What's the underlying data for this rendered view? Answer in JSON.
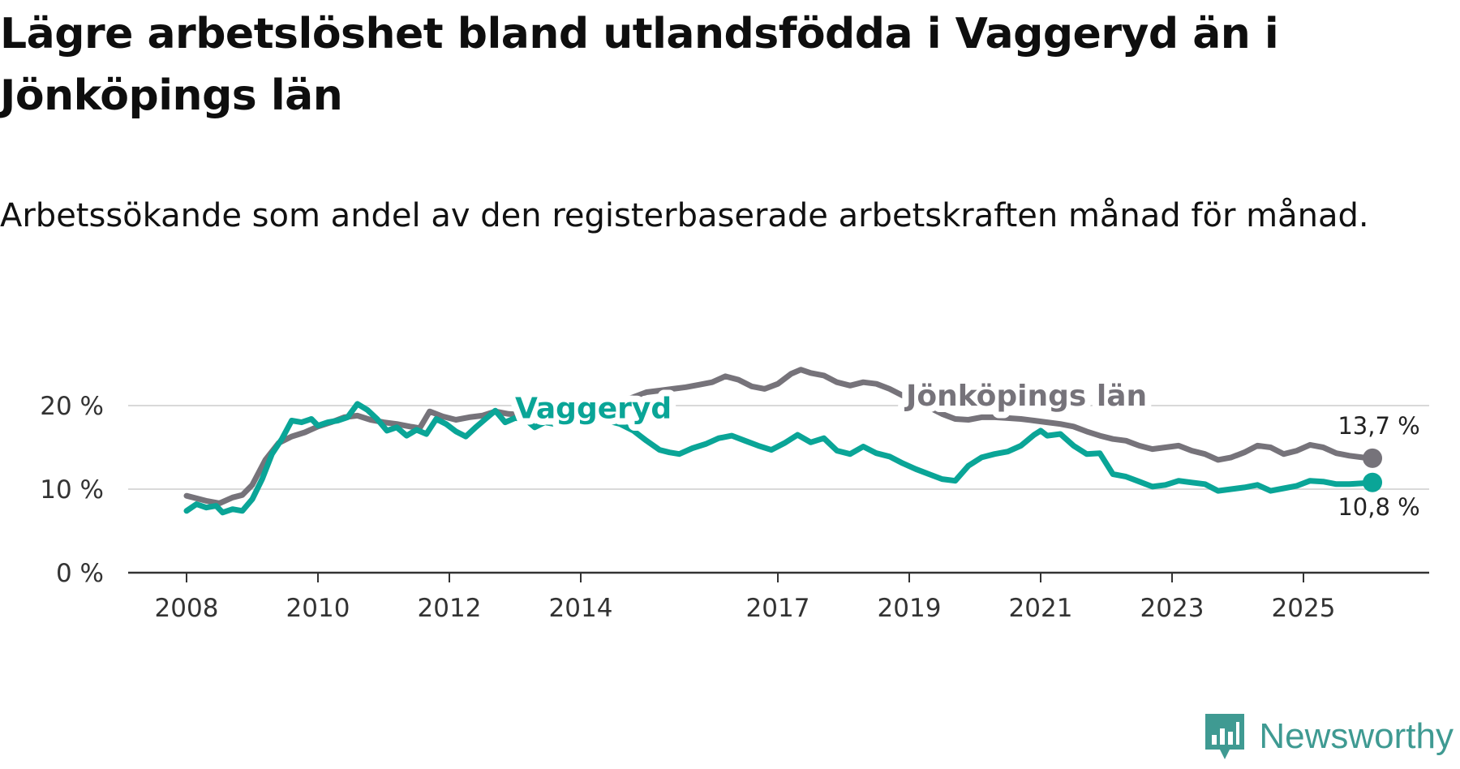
{
  "title": "Lägre arbetslöshet bland utlandsfödda i Vaggeryd än i Jönköpings län",
  "subtitle": "Arbetssökande som andel av den registerbaserade arbetskraften månad för månad.",
  "brand": {
    "name": "Newsworthy",
    "icon": "newsworthy-logo-icon",
    "color": "#3f9a92"
  },
  "chart_data": {
    "type": "line",
    "title": "Lägre arbetslöshet bland utlandsfödda i Vaggeryd än i Jönköpings län",
    "xlabel": "",
    "ylabel": "",
    "xlim": [
      2007.9,
      2026.7
    ],
    "ylim": [
      0,
      25
    ],
    "grid": true,
    "x_ticks": [
      {
        "value": 2008,
        "label": "2008"
      },
      {
        "value": 2010,
        "label": "2010"
      },
      {
        "value": 2012,
        "label": "2012"
      },
      {
        "value": 2014,
        "label": "2014"
      },
      {
        "value": 2017,
        "label": "2017"
      },
      {
        "value": 2019,
        "label": "2019"
      },
      {
        "value": 2021,
        "label": "2021"
      },
      {
        "value": 2023,
        "label": "2023"
      },
      {
        "value": 2025,
        "label": "2025"
      }
    ],
    "y_ticks": [
      {
        "value": 0,
        "label": "0 %"
      },
      {
        "value": 10,
        "label": "10 %"
      },
      {
        "value": 20,
        "label": "20 %"
      }
    ],
    "series": [
      {
        "name": "Jönköpings län",
        "color": "#76737a",
        "end_label": "13,7 %",
        "points": [
          [
            2008.0,
            9.2
          ],
          [
            2008.3,
            8.6
          ],
          [
            2008.5,
            8.3
          ],
          [
            2008.7,
            9.0
          ],
          [
            2008.85,
            9.3
          ],
          [
            2009.0,
            10.5
          ],
          [
            2009.2,
            13.5
          ],
          [
            2009.4,
            15.5
          ],
          [
            2009.6,
            16.3
          ],
          [
            2009.8,
            16.8
          ],
          [
            2010.0,
            17.5
          ],
          [
            2010.2,
            18.0
          ],
          [
            2010.4,
            18.6
          ],
          [
            2010.6,
            18.8
          ],
          [
            2010.8,
            18.3
          ],
          [
            2011.0,
            18.0
          ],
          [
            2011.2,
            17.8
          ],
          [
            2011.4,
            17.5
          ],
          [
            2011.55,
            17.3
          ],
          [
            2011.7,
            19.3
          ],
          [
            2011.9,
            18.7
          ],
          [
            2012.1,
            18.3
          ],
          [
            2012.3,
            18.6
          ],
          [
            2012.5,
            18.8
          ],
          [
            2012.7,
            19.3
          ],
          [
            2012.9,
            19.0
          ],
          [
            2013.1,
            18.9
          ],
          [
            2013.3,
            19.5
          ],
          [
            2013.5,
            19.8
          ],
          [
            2013.7,
            20.0
          ],
          [
            2013.9,
            20.6
          ],
          [
            2014.0,
            20.5
          ],
          [
            2014.2,
            20.2
          ],
          [
            2014.4,
            20.0
          ],
          [
            2014.6,
            20.5
          ],
          [
            2014.8,
            21.0
          ],
          [
            2015.0,
            21.6
          ],
          [
            2015.2,
            21.8
          ],
          [
            2015.4,
            22.0
          ],
          [
            2015.6,
            22.2
          ],
          [
            2015.8,
            22.5
          ],
          [
            2016.0,
            22.8
          ],
          [
            2016.2,
            23.5
          ],
          [
            2016.4,
            23.1
          ],
          [
            2016.6,
            22.3
          ],
          [
            2016.8,
            22.0
          ],
          [
            2017.0,
            22.6
          ],
          [
            2017.2,
            23.8
          ],
          [
            2017.35,
            24.3
          ],
          [
            2017.5,
            23.9
          ],
          [
            2017.7,
            23.6
          ],
          [
            2017.9,
            22.8
          ],
          [
            2018.1,
            22.4
          ],
          [
            2018.3,
            22.8
          ],
          [
            2018.5,
            22.6
          ],
          [
            2018.7,
            22.0
          ],
          [
            2018.9,
            21.2
          ],
          [
            2019.1,
            20.5
          ],
          [
            2019.3,
            19.8
          ],
          [
            2019.5,
            19.0
          ],
          [
            2019.7,
            18.4
          ],
          [
            2019.9,
            18.3
          ],
          [
            2020.1,
            18.6
          ],
          [
            2020.3,
            18.6
          ],
          [
            2020.5,
            18.5
          ],
          [
            2020.7,
            18.4
          ],
          [
            2020.9,
            18.2
          ],
          [
            2021.1,
            18.0
          ],
          [
            2021.3,
            17.8
          ],
          [
            2021.5,
            17.5
          ],
          [
            2021.7,
            16.9
          ],
          [
            2021.9,
            16.4
          ],
          [
            2022.1,
            16.0
          ],
          [
            2022.3,
            15.8
          ],
          [
            2022.5,
            15.2
          ],
          [
            2022.7,
            14.8
          ],
          [
            2022.9,
            15.0
          ],
          [
            2023.1,
            15.2
          ],
          [
            2023.3,
            14.6
          ],
          [
            2023.5,
            14.2
          ],
          [
            2023.7,
            13.5
          ],
          [
            2023.9,
            13.8
          ],
          [
            2024.1,
            14.4
          ],
          [
            2024.3,
            15.2
          ],
          [
            2024.5,
            15.0
          ],
          [
            2024.7,
            14.2
          ],
          [
            2024.9,
            14.6
          ],
          [
            2025.1,
            15.3
          ],
          [
            2025.3,
            15.0
          ],
          [
            2025.5,
            14.3
          ],
          [
            2025.7,
            14.0
          ],
          [
            2025.9,
            13.8
          ],
          [
            2026.05,
            13.7
          ]
        ]
      },
      {
        "name": "Vaggeryd",
        "color": "#0aa597",
        "end_label": "10,8 %",
        "points": [
          [
            2008.0,
            7.4
          ],
          [
            2008.15,
            8.2
          ],
          [
            2008.3,
            7.8
          ],
          [
            2008.45,
            8.0
          ],
          [
            2008.55,
            7.2
          ],
          [
            2008.7,
            7.6
          ],
          [
            2008.85,
            7.4
          ],
          [
            2009.0,
            8.8
          ],
          [
            2009.15,
            11.2
          ],
          [
            2009.3,
            14.2
          ],
          [
            2009.45,
            16.0
          ],
          [
            2009.6,
            18.2
          ],
          [
            2009.75,
            18.0
          ],
          [
            2009.9,
            18.4
          ],
          [
            2010.0,
            17.6
          ],
          [
            2010.15,
            18.0
          ],
          [
            2010.3,
            18.2
          ],
          [
            2010.45,
            18.6
          ],
          [
            2010.6,
            20.2
          ],
          [
            2010.75,
            19.5
          ],
          [
            2010.9,
            18.4
          ],
          [
            2011.05,
            17.0
          ],
          [
            2011.2,
            17.4
          ],
          [
            2011.35,
            16.4
          ],
          [
            2011.5,
            17.1
          ],
          [
            2011.65,
            16.6
          ],
          [
            2011.8,
            18.4
          ],
          [
            2011.95,
            17.8
          ],
          [
            2012.1,
            16.9
          ],
          [
            2012.25,
            16.3
          ],
          [
            2012.4,
            17.4
          ],
          [
            2012.55,
            18.4
          ],
          [
            2012.7,
            19.4
          ],
          [
            2012.85,
            18.0
          ],
          [
            2013.0,
            18.5
          ],
          [
            2013.15,
            18.4
          ],
          [
            2013.3,
            17.4
          ],
          [
            2013.45,
            18.0
          ],
          [
            2013.6,
            17.8
          ],
          [
            2013.8,
            18.1
          ],
          [
            2014.0,
            18.3
          ],
          [
            2014.2,
            18.4
          ],
          [
            2014.4,
            18.2
          ],
          [
            2014.6,
            17.8
          ],
          [
            2014.8,
            17.0
          ],
          [
            2015.0,
            15.8
          ],
          [
            2015.2,
            14.7
          ],
          [
            2015.35,
            14.4
          ],
          [
            2015.5,
            14.2
          ],
          [
            2015.7,
            14.9
          ],
          [
            2015.9,
            15.4
          ],
          [
            2016.1,
            16.1
          ],
          [
            2016.3,
            16.4
          ],
          [
            2016.5,
            15.8
          ],
          [
            2016.7,
            15.2
          ],
          [
            2016.9,
            14.7
          ],
          [
            2017.1,
            15.5
          ],
          [
            2017.3,
            16.5
          ],
          [
            2017.5,
            15.6
          ],
          [
            2017.7,
            16.1
          ],
          [
            2017.9,
            14.6
          ],
          [
            2018.1,
            14.2
          ],
          [
            2018.3,
            15.1
          ],
          [
            2018.5,
            14.3
          ],
          [
            2018.7,
            13.9
          ],
          [
            2018.9,
            13.1
          ],
          [
            2019.1,
            12.4
          ],
          [
            2019.3,
            11.8
          ],
          [
            2019.5,
            11.2
          ],
          [
            2019.7,
            11.0
          ],
          [
            2019.9,
            12.8
          ],
          [
            2020.1,
            13.8
          ],
          [
            2020.3,
            14.2
          ],
          [
            2020.5,
            14.5
          ],
          [
            2020.7,
            15.2
          ],
          [
            2020.9,
            16.5
          ],
          [
            2021.0,
            17.0
          ],
          [
            2021.1,
            16.4
          ],
          [
            2021.3,
            16.6
          ],
          [
            2021.5,
            15.2
          ],
          [
            2021.7,
            14.2
          ],
          [
            2021.9,
            14.3
          ],
          [
            2022.1,
            11.8
          ],
          [
            2022.3,
            11.5
          ],
          [
            2022.5,
            10.9
          ],
          [
            2022.7,
            10.3
          ],
          [
            2022.9,
            10.5
          ],
          [
            2023.1,
            11.0
          ],
          [
            2023.3,
            10.8
          ],
          [
            2023.5,
            10.6
          ],
          [
            2023.7,
            9.8
          ],
          [
            2023.9,
            10.0
          ],
          [
            2024.1,
            10.2
          ],
          [
            2024.3,
            10.5
          ],
          [
            2024.5,
            9.8
          ],
          [
            2024.7,
            10.1
          ],
          [
            2024.9,
            10.4
          ],
          [
            2025.1,
            11.0
          ],
          [
            2025.3,
            10.9
          ],
          [
            2025.5,
            10.6
          ],
          [
            2025.7,
            10.6
          ],
          [
            2025.9,
            10.7
          ],
          [
            2026.05,
            10.8
          ]
        ]
      }
    ],
    "annotations": [
      {
        "text": "Vaggeryd",
        "series": "Vaggeryd",
        "x": 2013.0,
        "y": 18.5
      },
      {
        "text": "Jönköpings län",
        "series": "Jönköpings län",
        "x": 2018.95,
        "y": 20.0
      }
    ]
  }
}
